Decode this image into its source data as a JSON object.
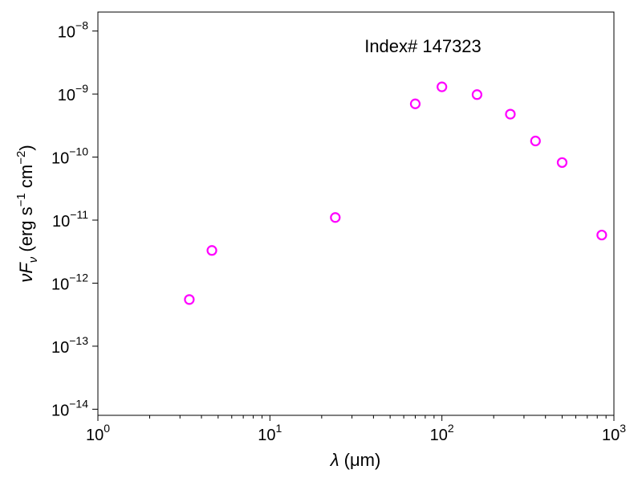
{
  "chart_data": {
    "type": "scatter",
    "annotation": "Index# 147323",
    "xlabel": {
      "prefix_symbol": "λ",
      "unit_text": " (μm)"
    },
    "ylabel": {
      "prefix_symbol": "νF",
      "sub_symbol": "ν",
      "unit_pre": " (erg s",
      "unit_exp1": "−1",
      "unit_mid": " cm",
      "unit_exp2": "−2",
      "unit_post": ")"
    },
    "x_scale": "log",
    "y_scale": "log",
    "xlim": [
      1,
      1000
    ],
    "ylim": [
      8e-15,
      2e-08
    ],
    "x_ticks": [
      {
        "value": 1,
        "base": "10",
        "exp": "0"
      },
      {
        "value": 10,
        "base": "10",
        "exp": "1"
      },
      {
        "value": 100,
        "base": "10",
        "exp": "2"
      },
      {
        "value": 1000,
        "base": "10",
        "exp": "3"
      }
    ],
    "y_ticks": [
      {
        "value": 1e-14,
        "base": "10",
        "exp": "−14"
      },
      {
        "value": 1e-13,
        "base": "10",
        "exp": "−13"
      },
      {
        "value": 1e-12,
        "base": "10",
        "exp": "−12"
      },
      {
        "value": 1e-11,
        "base": "10",
        "exp": "−11"
      },
      {
        "value": 1e-10,
        "base": "10",
        "exp": "−10"
      },
      {
        "value": 1e-09,
        "base": "10",
        "exp": "−9"
      },
      {
        "value": 1e-08,
        "base": "10",
        "exp": "−8"
      }
    ],
    "grid": false,
    "series": [
      {
        "marker": "open-circle",
        "color": "#ff00ff",
        "points": [
          {
            "x": 3.4,
            "y": 5.5e-13
          },
          {
            "x": 4.6,
            "y": 3.3e-12
          },
          {
            "x": 24,
            "y": 1.1e-11
          },
          {
            "x": 70,
            "y": 7e-10
          },
          {
            "x": 100,
            "y": 1.3e-09
          },
          {
            "x": 160,
            "y": 9.8e-10
          },
          {
            "x": 250,
            "y": 4.8e-10
          },
          {
            "x": 350,
            "y": 1.8e-10
          },
          {
            "x": 500,
            "y": 8.2e-11
          },
          {
            "x": 850,
            "y": 5.8e-12
          }
        ]
      }
    ]
  }
}
